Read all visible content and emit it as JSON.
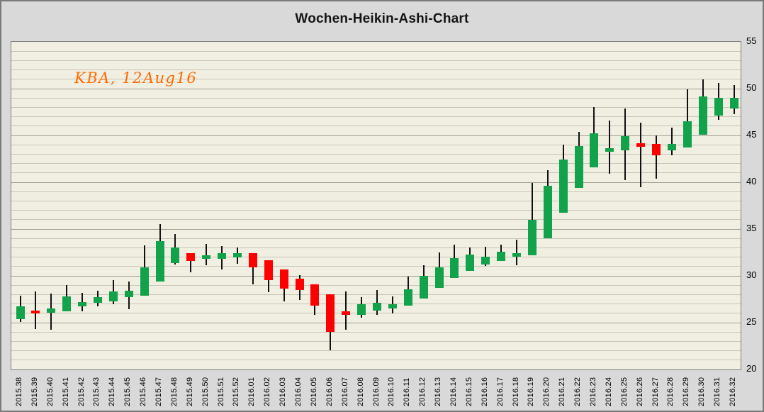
{
  "chart_data": {
    "type": "candlestick",
    "title": "Wochen-Heikin-Ashi-Chart",
    "annotation": {
      "text": "KBA, 12Aug16",
      "color": "#FF6A00"
    },
    "ylim": [
      20,
      55
    ],
    "y_ticks": [
      55,
      50,
      45,
      40,
      35,
      30,
      25,
      20
    ],
    "y_minor_step": 1,
    "y_major_step": 5,
    "grid": "horizontal",
    "legend": "none",
    "axis_side": "right",
    "up_color": "#12A24C",
    "down_color": "#FE0000",
    "wick_color": "#111111",
    "plot_background": "#F1EFE2",
    "outer_background": "#D9D9D9",
    "categories": [
      "2015.38",
      "2015.39",
      "2015.40",
      "2015.41",
      "2015.42",
      "2015.43",
      "2015.44",
      "2015.45",
      "2015.46",
      "2015.47",
      "2015.48",
      "2015.49",
      "2015.50",
      "2015.51",
      "2015.52",
      "2016.01",
      "2016.02",
      "2016.03",
      "2016.04",
      "2016.05",
      "2016.06",
      "2016.07",
      "2016.08",
      "2016.09",
      "2016.10",
      "2016.11",
      "2016.12",
      "2016.13",
      "2016.14",
      "2016.15",
      "2016.16",
      "2016.17",
      "2016.18",
      "2016.19",
      "2016.20",
      "2016.21",
      "2016.22",
      "2016.23",
      "2016.24",
      "2016.25",
      "2016.26",
      "2016.27",
      "2016.28",
      "2016.29",
      "2016.30",
      "2016.31",
      "2016.32"
    ],
    "ohlc": [
      [
        25.4,
        27.9,
        25.1,
        26.75
      ],
      [
        26.3,
        28.3,
        24.3,
        25.95
      ],
      [
        26.05,
        28.1,
        24.25,
        26.5
      ],
      [
        26.2,
        29.0,
        26.2,
        27.8
      ],
      [
        26.75,
        28.2,
        26.2,
        27.2
      ],
      [
        27.1,
        28.4,
        26.75,
        27.75
      ],
      [
        27.3,
        29.55,
        27.0,
        28.3
      ],
      [
        27.7,
        29.4,
        26.45,
        28.4
      ],
      [
        27.9,
        33.25,
        27.9,
        30.9
      ],
      [
        29.4,
        35.5,
        29.4,
        33.7
      ],
      [
        31.4,
        34.5,
        31.2,
        33.05
      ],
      [
        32.4,
        32.4,
        30.4,
        31.6
      ],
      [
        31.8,
        33.4,
        31.1,
        32.2
      ],
      [
        31.8,
        33.2,
        30.7,
        32.4
      ],
      [
        32.0,
        33.0,
        31.25,
        32.4
      ],
      [
        32.4,
        32.4,
        29.1,
        30.9
      ],
      [
        31.7,
        31.7,
        28.25,
        29.55
      ],
      [
        30.7,
        30.7,
        27.25,
        28.6
      ],
      [
        29.7,
        30.1,
        27.4,
        28.5
      ],
      [
        29.1,
        29.1,
        25.8,
        26.8
      ],
      [
        28.05,
        28.05,
        22.05,
        24.0
      ],
      [
        26.2,
        28.3,
        24.25,
        25.85
      ],
      [
        25.8,
        27.75,
        25.55,
        27.0
      ],
      [
        26.3,
        28.45,
        25.8,
        27.1
      ],
      [
        26.55,
        27.8,
        26.0,
        27.0
      ],
      [
        26.8,
        29.9,
        26.8,
        28.55
      ],
      [
        27.55,
        31.1,
        27.55,
        30.0
      ],
      [
        28.7,
        32.5,
        28.7,
        30.9
      ],
      [
        29.75,
        33.3,
        29.75,
        31.9
      ],
      [
        30.55,
        33.05,
        30.55,
        32.3
      ],
      [
        31.2,
        33.1,
        31.05,
        32.05
      ],
      [
        31.6,
        33.3,
        31.6,
        32.6
      ],
      [
        32.05,
        33.9,
        31.1,
        32.4
      ],
      [
        32.2,
        39.9,
        32.2,
        36.0
      ],
      [
        34.0,
        41.3,
        34.0,
        39.6
      ],
      [
        36.75,
        44.0,
        36.75,
        42.4
      ],
      [
        39.4,
        45.4,
        39.4,
        43.9
      ],
      [
        41.6,
        48.0,
        41.6,
        45.2
      ],
      [
        43.25,
        46.6,
        40.9,
        43.6
      ],
      [
        43.4,
        47.9,
        40.2,
        44.9
      ],
      [
        44.2,
        46.4,
        39.45,
        43.8
      ],
      [
        44.1,
        45.0,
        40.4,
        42.9
      ],
      [
        43.4,
        45.8,
        42.9,
        44.1
      ],
      [
        43.7,
        49.9,
        43.7,
        46.55
      ],
      [
        45.1,
        50.95,
        45.1,
        49.2
      ],
      [
        47.1,
        50.6,
        46.7,
        49.0
      ],
      [
        47.9,
        50.4,
        47.3,
        49.0
      ]
    ]
  }
}
